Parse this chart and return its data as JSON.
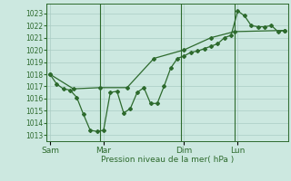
{
  "xlabel": "Pression niveau de la mer( hPa )",
  "bg_color": "#cce8e0",
  "grid_color": "#aaccc4",
  "line_color": "#2d6a2d",
  "ylim": [
    1012.5,
    1023.8
  ],
  "yticks": [
    1013,
    1014,
    1015,
    1016,
    1017,
    1018,
    1019,
    1020,
    1021,
    1022,
    1023
  ],
  "day_labels": [
    "Sam",
    "Mar",
    "Dim",
    "Lun"
  ],
  "day_positions": [
    0.5,
    8.5,
    20.5,
    28.5
  ],
  "vline_positions": [
    0,
    8,
    20,
    28,
    36
  ],
  "line1_x": [
    0.5,
    1.5,
    2.5,
    3.5,
    4.5,
    5.5,
    6.5,
    7.5,
    8.5,
    9.5,
    10.5,
    11.5,
    12.5,
    13.5,
    14.5,
    15.5,
    16.5,
    17.5,
    18.5,
    19.5,
    20.5,
    21.5,
    22.5,
    23.5,
    24.5,
    25.5,
    26.5,
    27.5,
    28.5,
    29.5,
    30.5,
    31.5,
    32.5,
    33.5,
    34.5,
    35.5
  ],
  "line1_y": [
    1018.0,
    1017.2,
    1016.8,
    1016.7,
    1016.1,
    1014.7,
    1013.4,
    1013.3,
    1013.4,
    1016.5,
    1016.6,
    1014.8,
    1015.2,
    1016.5,
    1016.9,
    1015.6,
    1015.6,
    1017.0,
    1018.5,
    1019.3,
    1019.5,
    1019.8,
    1019.9,
    1020.1,
    1020.3,
    1020.5,
    1021.0,
    1021.2,
    1023.2,
    1022.8,
    1022.0,
    1021.9,
    1021.9,
    1022.0,
    1021.5,
    1021.6
  ],
  "line2_x": [
    0.5,
    4.0,
    8.0,
    12.0,
    16.0,
    20.5,
    24.5,
    28.0,
    35.5
  ],
  "line2_y": [
    1018.0,
    1016.8,
    1016.9,
    1016.9,
    1019.3,
    1020.0,
    1021.0,
    1021.5,
    1021.6
  ],
  "xlim": [
    0,
    36
  ]
}
